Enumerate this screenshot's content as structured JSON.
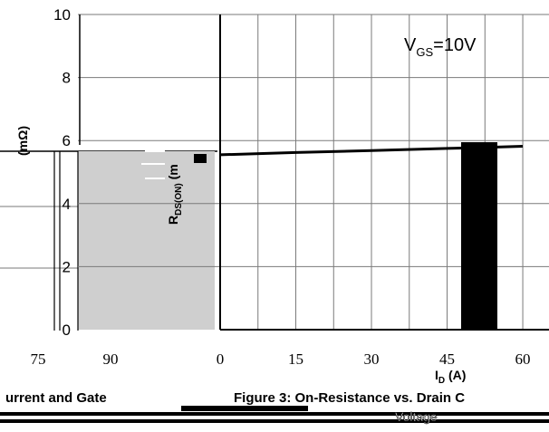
{
  "chart_data": [
    {
      "type": "line",
      "title": "Figure 3: On-Resistance vs. Drain C",
      "annotation": "V_GS=10V",
      "xlabel": "I_D (A)",
      "ylabel": "R_DS(ON) (mΩ)",
      "xlim": [
        0,
        60
      ],
      "ylim": [
        0,
        10
      ],
      "x_ticks": [
        "0",
        "15",
        "30",
        "45",
        "60"
      ],
      "y_ticks": [
        "0",
        "2",
        "4",
        "6",
        "8",
        "10"
      ],
      "grid": true,
      "series": [
        {
          "x": [
            0,
            15,
            30,
            45,
            52,
            60
          ],
          "y": [
            5.55,
            5.62,
            5.68,
            5.75,
            5.78,
            5.82
          ]
        }
      ]
    },
    {
      "type": "line",
      "title": "urrent and Gate",
      "x_ticks": [
        "75",
        "90"
      ],
      "ylabel": "(mΩ)",
      "grid": true
    }
  ],
  "labels": {
    "annotation_main": "V",
    "annotation_sub": "GS",
    "annotation_rest": "=10V",
    "xlabel_main": "I",
    "xlabel_sub": "D",
    "xlabel_rest": " (A)",
    "ylabel_main": "R",
    "ylabel_sub": "DS(ON)",
    "ylabel_rest": " (m",
    "left_ylabel": "(mΩ)",
    "footer_text": "Voltage"
  }
}
